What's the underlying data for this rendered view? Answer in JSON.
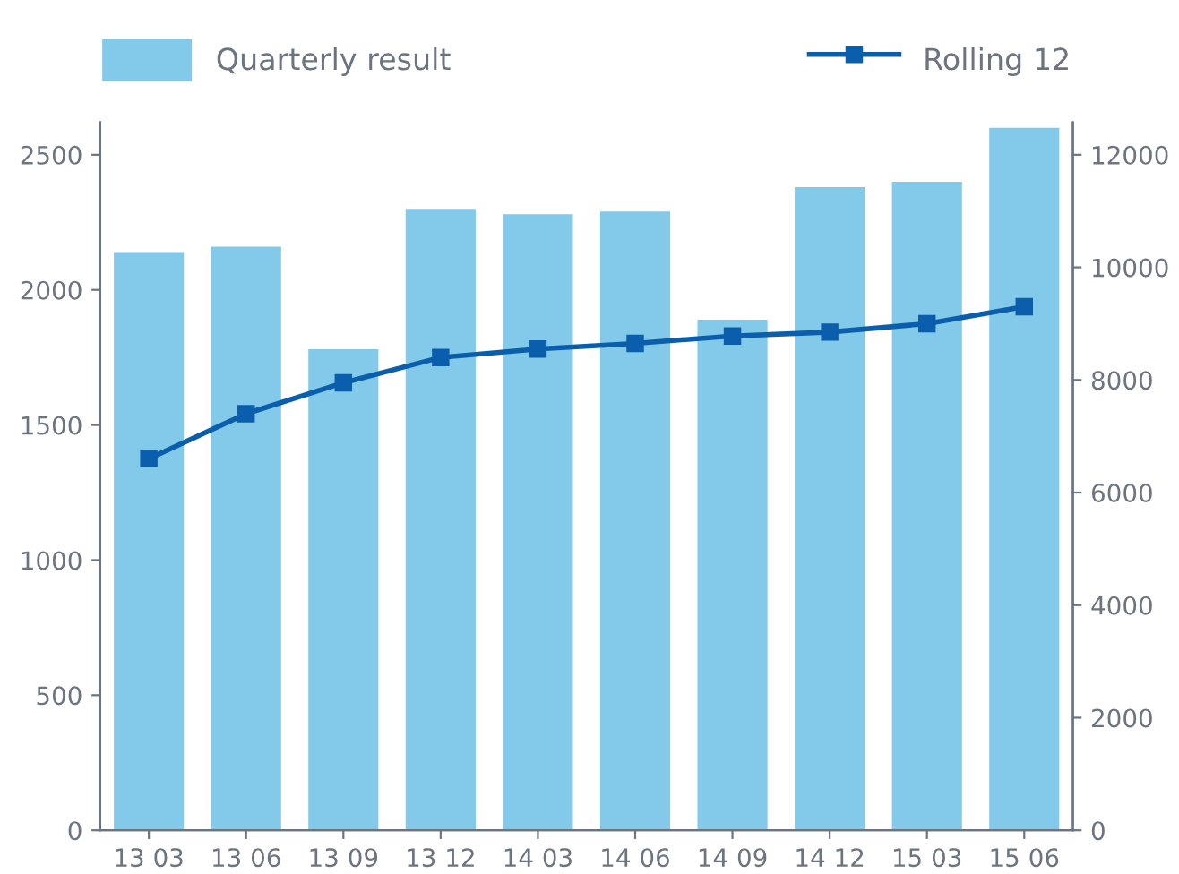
{
  "chart_data": {
    "type": "bar",
    "categories": [
      "13 03",
      "13 06",
      "13 09",
      "13 12",
      "14 03",
      "14 06",
      "14 09",
      "14 12",
      "15 03",
      "15 06"
    ],
    "series": [
      {
        "name": "Quarterly result",
        "color": "#82c9ea",
        "values": [
          2140,
          2160,
          1780,
          2300,
          2280,
          2290,
          1890,
          2380,
          2400,
          2600
        ]
      },
      {
        "name": "Rolling 12",
        "type": "line",
        "axis": "y2",
        "color": "#0a5eab",
        "values": [
          6600,
          7400,
          7950,
          8400,
          8550,
          8650,
          8780,
          8850,
          9000,
          9300
        ]
      }
    ],
    "ylim": [
      0,
      2620
    ],
    "yticks": [
      0,
      500,
      1000,
      1500,
      2000,
      2500
    ],
    "y2lim": [
      0,
      12576
    ],
    "y2ticks": [
      0,
      2000,
      4000,
      6000,
      8000,
      10000,
      12000
    ],
    "marker": "square",
    "line_style": "solid",
    "grid": false,
    "legend": "top"
  }
}
